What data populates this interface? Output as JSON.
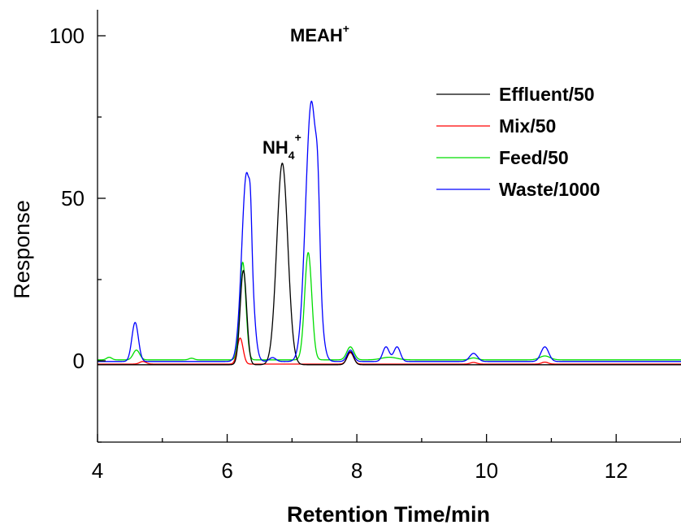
{
  "chart_data": {
    "type": "line",
    "xlabel": "Retention Time/min",
    "ylabel": "Response",
    "xlim": [
      4,
      13
    ],
    "ylim": [
      -25,
      108
    ],
    "x_ticks": [
      4,
      6,
      8,
      10,
      12
    ],
    "x_tick_labels": [
      "4",
      "6",
      "8",
      "10",
      "12"
    ],
    "y_ticks": [
      0,
      50,
      100
    ],
    "y_tick_labels": [
      "0",
      "50",
      "100"
    ],
    "grid": false,
    "legend_position": "top-right",
    "annotations": [
      {
        "base": "NH",
        "sub": "4",
        "sup": "+",
        "x": 6.85,
        "y": 61
      },
      {
        "base": "MEAH",
        "sub": "",
        "sup": "+",
        "x": 7.4,
        "y": 96
      }
    ],
    "series": [
      {
        "name": "Effluent/50",
        "color": "#000000",
        "baseline": -1.2,
        "peaks": [
          {
            "x": 6.25,
            "height": 29,
            "width": 0.05
          },
          {
            "x": 6.85,
            "height": 62,
            "width": 0.085
          },
          {
            "x": 7.9,
            "height": 4,
            "width": 0.05
          }
        ]
      },
      {
        "name": "Mix/50",
        "color": "#ff0000",
        "baseline": -1.0,
        "peaks": [
          {
            "x": 4.7,
            "height": 0.8,
            "width": 0.05
          },
          {
            "x": 6.2,
            "height": 8,
            "width": 0.045
          },
          {
            "x": 7.9,
            "height": 3.5,
            "width": 0.05
          },
          {
            "x": 9.8,
            "height": 0.5,
            "width": 0.05
          },
          {
            "x": 10.9,
            "height": 0.6,
            "width": 0.05
          }
        ]
      },
      {
        "name": "Feed/50",
        "color": "#00dd00",
        "baseline": 0.3,
        "peaks": [
          {
            "x": 4.18,
            "height": 0.8,
            "width": 0.04
          },
          {
            "x": 4.6,
            "height": 3,
            "width": 0.05
          },
          {
            "x": 5.45,
            "height": 0.5,
            "width": 0.04
          },
          {
            "x": 6.24,
            "height": 30,
            "width": 0.048
          },
          {
            "x": 7.25,
            "height": 33,
            "width": 0.055
          },
          {
            "x": 7.9,
            "height": 4,
            "width": 0.055
          },
          {
            "x": 8.5,
            "height": 0.8,
            "width": 0.12
          },
          {
            "x": 9.8,
            "height": 0.6,
            "width": 0.06
          },
          {
            "x": 10.9,
            "height": 1.2,
            "width": 0.08
          }
        ]
      },
      {
        "name": "Waste/1000",
        "color": "#0000ff",
        "baseline": -0.2,
        "peaks": [
          {
            "x": 4.58,
            "height": 12,
            "width": 0.05
          },
          {
            "x": 6.3,
            "height": 58,
            "width": 0.075
          },
          {
            "x": 6.36,
            "height": 10,
            "width": 0.02
          },
          {
            "x": 6.7,
            "height": 1.2,
            "width": 0.05
          },
          {
            "x": 7.3,
            "height": 80,
            "width": 0.09
          },
          {
            "x": 7.4,
            "height": 18,
            "width": 0.03
          },
          {
            "x": 7.9,
            "height": 3.5,
            "width": 0.05
          },
          {
            "x": 8.45,
            "height": 4.5,
            "width": 0.05
          },
          {
            "x": 8.62,
            "height": 4.5,
            "width": 0.05
          },
          {
            "x": 9.8,
            "height": 2.5,
            "width": 0.06
          },
          {
            "x": 10.9,
            "height": 4.5,
            "width": 0.06
          }
        ]
      }
    ]
  }
}
